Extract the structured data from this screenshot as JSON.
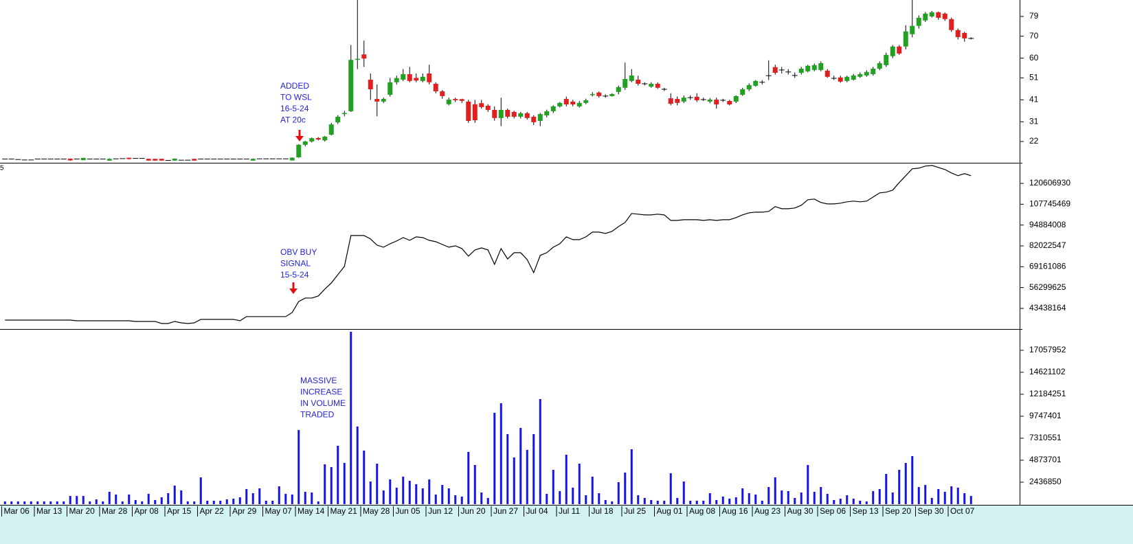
{
  "chart_data": [
    {
      "type": "candlestick",
      "up_color": "#22a022",
      "down_color": "#e02020",
      "ylim": [
        12.3,
        86.5
      ],
      "yticks": [
        22,
        31,
        41,
        51,
        60,
        70,
        79
      ],
      "annotation": [
        "ADDED",
        "TO WSL",
        "16-5-24",
        "AT 20c"
      ],
      "open": [
        14,
        14,
        13.8,
        13.6,
        13.6,
        14,
        14,
        14,
        14,
        14,
        14.2,
        14,
        13.5,
        14,
        14,
        14,
        13.3,
        14.1,
        14.2,
        14.6,
        14.3,
        14.3,
        14.1,
        14.1,
        14.1,
        13.4,
        13.3,
        13.5,
        13.5,
        14.1,
        14,
        14,
        14,
        14,
        14,
        14,
        14,
        14,
        13.3,
        14.1,
        14.1,
        14.1,
        14.1,
        14.1,
        13.4,
        14.8,
        20.5,
        22,
        23.6,
        22.5,
        25.1,
        30.7,
        34.5,
        35.8,
        59.5,
        61.7,
        50.2,
        41.4,
        40.2,
        43.3,
        49,
        50.2,
        52.7,
        51,
        49.6,
        53,
        48.3,
        44.9,
        39,
        41.4,
        41.3,
        40.2,
        39,
        39.5,
        38.3,
        36.4,
        32.7,
        36.4,
        35.5,
        33.3,
        34.9,
        33.3,
        31.4,
        33.9,
        35.8,
        38,
        41.4,
        40.2,
        38,
        39.6,
        43.3,
        44.3,
        42.7,
        42.7,
        44.6,
        46.5,
        49.6,
        50.2,
        48.3,
        47,
        48.3,
        45.8,
        41.7,
        41.4,
        40.2,
        42,
        42.4,
        41.1,
        40.2,
        41.1,
        40.8,
        40.5,
        40.2,
        43.3,
        45.8,
        47.4,
        49,
        52,
        55.9,
        54.6,
        53.7,
        52.1,
        53.3,
        54,
        54.6,
        54.6,
        54.3,
        50.8,
        51.2,
        49.6,
        50.2,
        51.5,
        52.1,
        52.7,
        55.2,
        56.8,
        60.9,
        65.3,
        65.3,
        70.9,
        74.7,
        77.2,
        79,
        80.9,
        80.3,
        77.8,
        72.8,
        71.5,
        69
      ],
      "high": [
        14,
        14,
        13.8,
        13.6,
        13.6,
        14,
        14,
        14,
        14,
        14,
        14.2,
        14,
        14.6,
        14,
        14,
        14,
        14.3,
        14.1,
        14.2,
        14.6,
        14.3,
        14.3,
        14.1,
        14.1,
        14.1,
        13.4,
        14.3,
        13.5,
        13.5,
        14.1,
        14,
        14,
        14,
        14,
        14,
        14,
        14,
        14,
        14.3,
        14.1,
        14.1,
        14.1,
        14.1,
        14.1,
        14.8,
        20.8,
        22.3,
        23.8,
        24,
        24.5,
        30.5,
        34,
        36,
        66,
        90,
        68,
        53,
        48,
        42,
        51,
        52,
        55,
        56,
        53,
        53,
        57,
        49,
        45.5,
        42,
        42,
        41.5,
        41,
        41,
        41,
        39,
        38,
        42,
        37,
        36,
        35.5,
        35.5,
        34,
        35,
        36.5,
        38.5,
        40,
        42.5,
        41,
        40.5,
        41.5,
        44.5,
        44.8,
        43.5,
        44,
        47.5,
        58,
        55,
        52,
        49,
        49,
        49,
        46.5,
        44,
        42.5,
        43,
        43,
        44,
        42,
        41.8,
        42,
        41.5,
        41,
        43,
        46.5,
        48.5,
        50,
        50,
        59,
        57,
        56,
        55,
        53.5,
        56,
        57,
        57.5,
        58.5,
        55,
        52,
        52,
        52,
        52.8,
        53.5,
        54.5,
        56,
        58.5,
        62.5,
        66,
        66,
        75,
        90,
        79.5,
        81,
        81.5,
        81.2,
        80.8,
        78.5,
        73.5,
        72,
        69.5
      ],
      "low": [
        14,
        14,
        13.8,
        13.6,
        13.6,
        14,
        14,
        14,
        14,
        14,
        13.2,
        14,
        13.5,
        14,
        14,
        14,
        13.3,
        14.1,
        14.2,
        13.8,
        14.3,
        14.3,
        13.2,
        13.2,
        13.2,
        13.4,
        13.3,
        13.5,
        13.5,
        13.2,
        14,
        14,
        14,
        14,
        14,
        14,
        14,
        14,
        13.3,
        14.1,
        14.1,
        14.1,
        14.1,
        14.1,
        13.3,
        14.6,
        19.8,
        21.6,
        22.5,
        22,
        24.8,
        30,
        33.5,
        35.5,
        55,
        56,
        41,
        33.5,
        39.5,
        42.5,
        48,
        49.5,
        49,
        49,
        49,
        48,
        44,
        41.5,
        38.5,
        40,
        39.5,
        30.5,
        30.5,
        37,
        35.5,
        31.5,
        29,
        32.5,
        32.5,
        32.5,
        32,
        29.5,
        29,
        33,
        35,
        37.5,
        38,
        38,
        37.5,
        39,
        42.5,
        42,
        42,
        42.5,
        43.5,
        45.5,
        49,
        47.5,
        47.5,
        46.5,
        46,
        45,
        38.5,
        38.5,
        39.5,
        41,
        40,
        40.5,
        39.5,
        37,
        40,
        38.5,
        39.5,
        42.8,
        45,
        47,
        48,
        50,
        52.5,
        53,
        52.5,
        51,
        52.5,
        53.5,
        54,
        54,
        51,
        50,
        48.8,
        49,
        49.8,
        51,
        51.5,
        52,
        54.5,
        56,
        60,
        61.5,
        64,
        69.5,
        73.5,
        76.5,
        78.5,
        77.5,
        77,
        72,
        68.5,
        67.5,
        68.5
      ],
      "close": [
        14,
        14,
        13.8,
        13.6,
        13.6,
        14,
        14,
        14,
        14,
        14,
        13.4,
        14,
        14.5,
        14,
        14,
        14,
        14.1,
        14.1,
        14.2,
        14,
        14.3,
        14.3,
        13.3,
        13.3,
        13.3,
        13.4,
        14.2,
        13.5,
        13.5,
        13.3,
        14,
        14,
        14,
        14,
        14,
        14,
        14,
        14,
        14.1,
        14.1,
        14.1,
        14.1,
        14.1,
        14.1,
        14.6,
        20.5,
        22,
        23.5,
        22.9,
        24.2,
        29.8,
        33.3,
        35,
        59.2,
        59.7,
        59.8,
        45.8,
        40.2,
        41.4,
        49,
        50.9,
        52.7,
        49.6,
        49.8,
        51.5,
        49,
        44.9,
        42.7,
        41.1,
        40.8,
        40.5,
        31.4,
        31.7,
        37.7,
        36.4,
        32.7,
        36.4,
        33.3,
        33.3,
        34.9,
        32.7,
        30.8,
        34.5,
        35.8,
        38,
        39.6,
        38.9,
        38.9,
        39.6,
        40.8,
        43.6,
        42.7,
        42.7,
        43.6,
        46.8,
        50.5,
        52.1,
        48.3,
        48.3,
        48.3,
        46.5,
        45.8,
        39.2,
        39.6,
        42,
        42,
        40.8,
        41.1,
        41.1,
        38.9,
        40.8,
        38.9,
        42.7,
        45.8,
        47.7,
        49.6,
        49,
        52,
        53.3,
        54.6,
        53.7,
        52.1,
        55.2,
        56.5,
        56.8,
        57.7,
        51.5,
        50.8,
        49.3,
        51.5,
        52.1,
        52.7,
        53.7,
        55.2,
        57.7,
        61.5,
        65.3,
        62.1,
        72.2,
        74.7,
        78.4,
        80.3,
        80.9,
        78.4,
        77.8,
        72.8,
        69.6,
        69,
        69
      ]
    },
    {
      "type": "line",
      "color": "#000000",
      "ylim": [
        30700000,
        133340000
      ],
      "yticks": [
        43438164,
        56299625,
        69161086,
        82022547,
        94884008,
        107745469,
        120606930
      ],
      "corner_label": "5",
      "annotation": [
        "OBV BUY",
        "SIGNAL",
        "15-5-24"
      ],
      "values": [
        36220000,
        36220000,
        36220000,
        36220000,
        36220000,
        36220000,
        36220000,
        36220000,
        36220000,
        36220000,
        36220000,
        35800000,
        35800000,
        35800000,
        35800000,
        35800000,
        35800000,
        35800000,
        35800000,
        35800000,
        35370000,
        35370000,
        35370000,
        35370000,
        34100000,
        34100000,
        35370000,
        34520000,
        34100000,
        34520000,
        36650000,
        36650000,
        36650000,
        36650000,
        36650000,
        36650000,
        35800000,
        38350000,
        38350000,
        38350000,
        38350000,
        38350000,
        38350000,
        38350000,
        40890000,
        47690000,
        49810000,
        49810000,
        51080000,
        55330000,
        59150000,
        64240000,
        69330000,
        88440000,
        88440000,
        88440000,
        86310000,
        82490000,
        81220000,
        83340000,
        85040000,
        87160000,
        85460000,
        87590000,
        87160000,
        85460000,
        84620000,
        82920000,
        81220000,
        82070000,
        80370000,
        75700000,
        79520000,
        80790000,
        79520000,
        70610000,
        80370000,
        73960000,
        77820000,
        77820000,
        73580000,
        65510000,
        76130000,
        77820000,
        81220000,
        83340000,
        87590000,
        85890000,
        85890000,
        87590000,
        90560000,
        90560000,
        89710000,
        90980000,
        93960000,
        96500000,
        102020000,
        101600000,
        101170000,
        101170000,
        101600000,
        101170000,
        97770000,
        97770000,
        98200000,
        98200000,
        98200000,
        97770000,
        98200000,
        97770000,
        98200000,
        98200000,
        99470000,
        101170000,
        102440000,
        102870000,
        102870000,
        103290000,
        106270000,
        104990000,
        104990000,
        105420000,
        107120000,
        110510000,
        110940000,
        108810000,
        107960000,
        107960000,
        108390000,
        109240000,
        109660000,
        109240000,
        109660000,
        112210000,
        114760000,
        115180000,
        116450000,
        121120000,
        125370000,
        129610000,
        130040000,
        131310000,
        131740000,
        130460000,
        129190000,
        127070000,
        125370000,
        126640000,
        125370000
      ]
    },
    {
      "type": "bar",
      "color": "#1414e6",
      "ylim": [
        0,
        19340000
      ],
      "yticks": [
        2436850,
        4873701,
        7310551,
        9747401,
        12184251,
        14621102,
        17057952
      ],
      "annotation": [
        "MASSIVE",
        "INCREASE",
        "IN VOLUME",
        "TRADED"
      ],
      "categories": [
        "Mar 06",
        null,
        null,
        null,
        null,
        "Mar 13",
        null,
        null,
        null,
        null,
        "Mar 20",
        null,
        null,
        null,
        null,
        "Mar 28",
        null,
        null,
        null,
        null,
        "Apr 08",
        null,
        null,
        null,
        null,
        "Apr 15",
        null,
        null,
        null,
        null,
        "Apr 22",
        null,
        null,
        null,
        null,
        "Apr 29",
        null,
        null,
        null,
        null,
        "May 07",
        null,
        null,
        null,
        null,
        "May 14",
        null,
        null,
        null,
        null,
        "May 21",
        null,
        null,
        null,
        null,
        "May 28",
        null,
        null,
        null,
        null,
        "Jun 05",
        null,
        null,
        null,
        null,
        "Jun 12",
        null,
        null,
        null,
        null,
        "Jun 20",
        null,
        null,
        null,
        null,
        "Jun 27",
        null,
        null,
        null,
        null,
        "Jul 04",
        null,
        null,
        null,
        null,
        "Jul 11",
        null,
        null,
        null,
        null,
        "Jul 18",
        null,
        null,
        null,
        null,
        "Jul 25",
        null,
        null,
        null,
        null,
        "Aug 01",
        null,
        null,
        null,
        null,
        "Aug 08",
        null,
        null,
        null,
        null,
        "Aug 16",
        null,
        null,
        null,
        null,
        "Aug 23",
        null,
        null,
        null,
        null,
        "Aug 30",
        null,
        null,
        null,
        null,
        "Sep 06",
        null,
        null,
        null,
        null,
        "Sep 13",
        null,
        null,
        null,
        null,
        "Sep 20",
        null,
        null,
        null,
        null,
        "Sep 30",
        null,
        null,
        null,
        null,
        "Oct 07",
        null,
        null,
        null
      ],
      "values": [
        300000,
        300000,
        300000,
        300000,
        300000,
        300000,
        300000,
        300000,
        300000,
        300000,
        910000,
        910000,
        910000,
        300000,
        530000,
        300000,
        1370000,
        1070000,
        300000,
        1070000,
        460000,
        300000,
        1140000,
        460000,
        760000,
        1220000,
        2060000,
        1520000,
        300000,
        300000,
        2970000,
        380000,
        380000,
        380000,
        530000,
        610000,
        760000,
        1680000,
        1220000,
        1750000,
        380000,
        380000,
        1980000,
        1140000,
        1070000,
        8220000,
        1370000,
        1290000,
        300000,
        4420000,
        4110000,
        6470000,
        4570000,
        19110000,
        8610000,
        5940000,
        2510000,
        4490000,
        1520000,
        2740000,
        1830000,
        3050000,
        2590000,
        2210000,
        1750000,
        2740000,
        1070000,
        2130000,
        1750000,
        990000,
        840000,
        5790000,
        4340000,
        1290000,
        690000,
        10130000,
        11190000,
        7770000,
        5180000,
        8450000,
        6020000,
        7770000,
        11650000,
        1140000,
        3810000,
        1450000,
        5480000,
        1830000,
        4490000,
        990000,
        3050000,
        1220000,
        460000,
        300000,
        2440000,
        3500000,
        6090000,
        990000,
        690000,
        460000,
        380000,
        380000,
        3430000,
        690000,
        2510000,
        380000,
        380000,
        380000,
        1220000,
        460000,
        840000,
        610000,
        760000,
        1750000,
        1220000,
        1070000,
        380000,
        1900000,
        2970000,
        1520000,
        1450000,
        690000,
        1290000,
        4340000,
        1370000,
        1900000,
        1140000,
        460000,
        610000,
        990000,
        610000,
        380000,
        300000,
        1450000,
        1680000,
        3350000,
        1290000,
        3810000,
        4570000,
        5330000,
        1900000,
        2130000,
        690000,
        1680000,
        1370000,
        1980000,
        1830000,
        1220000,
        910000
      ]
    }
  ]
}
